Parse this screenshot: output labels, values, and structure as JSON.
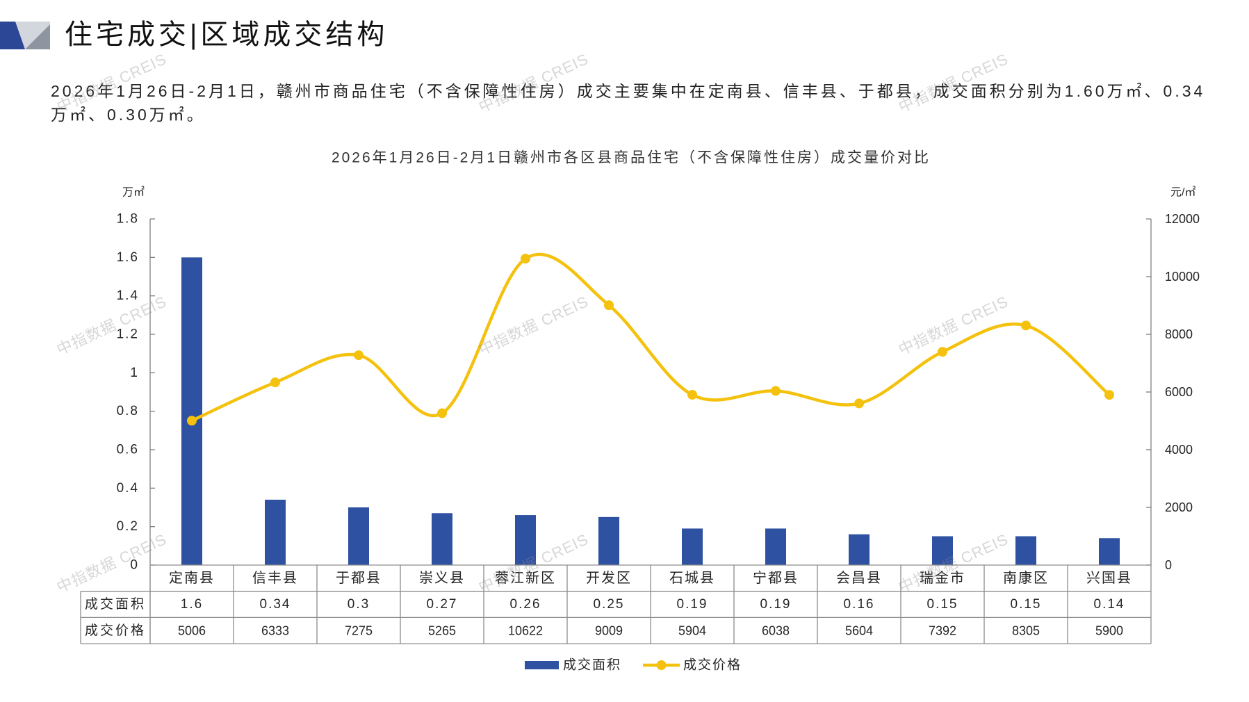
{
  "header": {
    "icon": "banner-corner-icon",
    "title": "住宅成交|区域成交结构"
  },
  "summary": {
    "text": "2026年1月26日-2月1日，赣州市商品住宅（不含保障性住房）成交主要集中在定南县、信丰县、于都县，成交面积分别为1.60万㎡、0.34万㎡、0.30万㎡。"
  },
  "watermark": "中指数据 CREIS",
  "chart_data": {
    "type": "bar",
    "title": "2026年1月26日-2月1日赣州市各区县商品住宅（不含保障性住房）成交量价对比",
    "categories": [
      "定南县",
      "信丰县",
      "于都县",
      "崇义县",
      "蓉江新区",
      "开发区",
      "石城县",
      "宁都县",
      "会昌县",
      "瑞金市",
      "南康区",
      "兴国县"
    ],
    "series": [
      {
        "name": "成交面积",
        "type": "bar",
        "axis": "left",
        "color": "#2E51A2",
        "values": [
          1.6,
          0.34,
          0.3,
          0.27,
          0.26,
          0.25,
          0.19,
          0.19,
          0.16,
          0.15,
          0.15,
          0.14
        ]
      },
      {
        "name": "成交价格",
        "type": "line",
        "axis": "right",
        "smooth": true,
        "color": "#F4C20E",
        "values": [
          5006,
          6333,
          7275,
          5265,
          10622,
          9009,
          5904,
          6038,
          5604,
          7392,
          8305,
          5900
        ]
      }
    ],
    "y_left": {
      "label": "万㎡",
      "ylim": [
        0,
        1.8
      ],
      "ticks": [
        0,
        0.2,
        0.4,
        0.6,
        0.8,
        1,
        1.2,
        1.4,
        1.6,
        1.8
      ]
    },
    "y_right": {
      "label": "元/㎡",
      "ylim": [
        0,
        12000
      ],
      "ticks": [
        0,
        2000,
        4000,
        6000,
        8000,
        10000,
        12000
      ]
    },
    "grid": false,
    "legend": "bottom",
    "data_table": true
  }
}
